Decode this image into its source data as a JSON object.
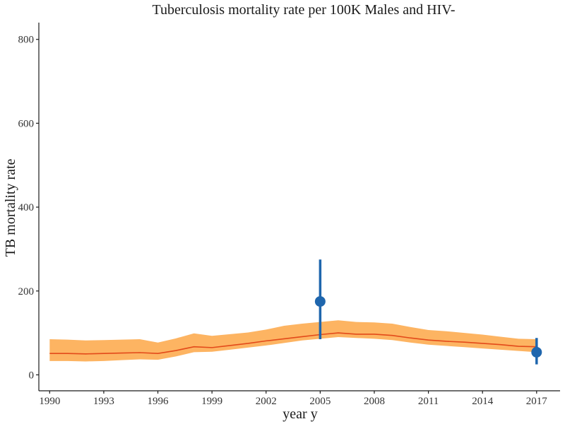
{
  "chart_data": {
    "type": "line",
    "title": "Tuberculosis mortality rate per 100K Males and HIV-",
    "xlabel": "year y",
    "ylabel": "TB mortality rate",
    "xlim": [
      1989.4,
      2018.3
    ],
    "ylim": [
      -38,
      840
    ],
    "x_ticks": [
      1990,
      1993,
      1996,
      1999,
      2002,
      2005,
      2008,
      2011,
      2014,
      2017
    ],
    "y_ticks": [
      0,
      200,
      400,
      600,
      800
    ],
    "grid": false,
    "legend": "none",
    "colors": {
      "band": "#fdb462",
      "line": "#e34a1a",
      "points": "#1f66ad"
    },
    "series": [
      {
        "kind": "estimate-with-uncertainty",
        "x": [
          1990,
          1991,
          1992,
          1993,
          1994,
          1995,
          1996,
          1997,
          1998,
          1999,
          2000,
          2001,
          2002,
          2003,
          2004,
          2005,
          2006,
          2007,
          2008,
          2009,
          2010,
          2011,
          2012,
          2013,
          2014,
          2015,
          2016,
          2017
        ],
        "y": [
          51,
          51,
          50,
          51,
          52,
          53,
          51,
          58,
          67,
          65,
          70,
          75,
          81,
          86,
          91,
          96,
          100,
          97,
          97,
          94,
          88,
          83,
          80,
          78,
          75,
          72,
          68,
          67
        ],
        "lower": [
          33,
          33,
          32,
          33,
          35,
          37,
          36,
          44,
          54,
          55,
          60,
          65,
          70,
          76,
          82,
          86,
          90,
          88,
          86,
          83,
          77,
          72,
          69,
          66,
          63,
          60,
          57,
          54
        ],
        "upper": [
          85,
          84,
          82,
          83,
          84,
          85,
          77,
          87,
          99,
          93,
          97,
          101,
          108,
          117,
          122,
          126,
          130,
          126,
          125,
          122,
          114,
          107,
          104,
          100,
          96,
          91,
          86,
          85
        ]
      },
      {
        "kind": "observations",
        "x": [
          2005,
          2017
        ],
        "y": [
          175,
          54
        ],
        "lower": [
          85,
          25
        ],
        "upper": [
          275,
          88
        ]
      }
    ]
  }
}
